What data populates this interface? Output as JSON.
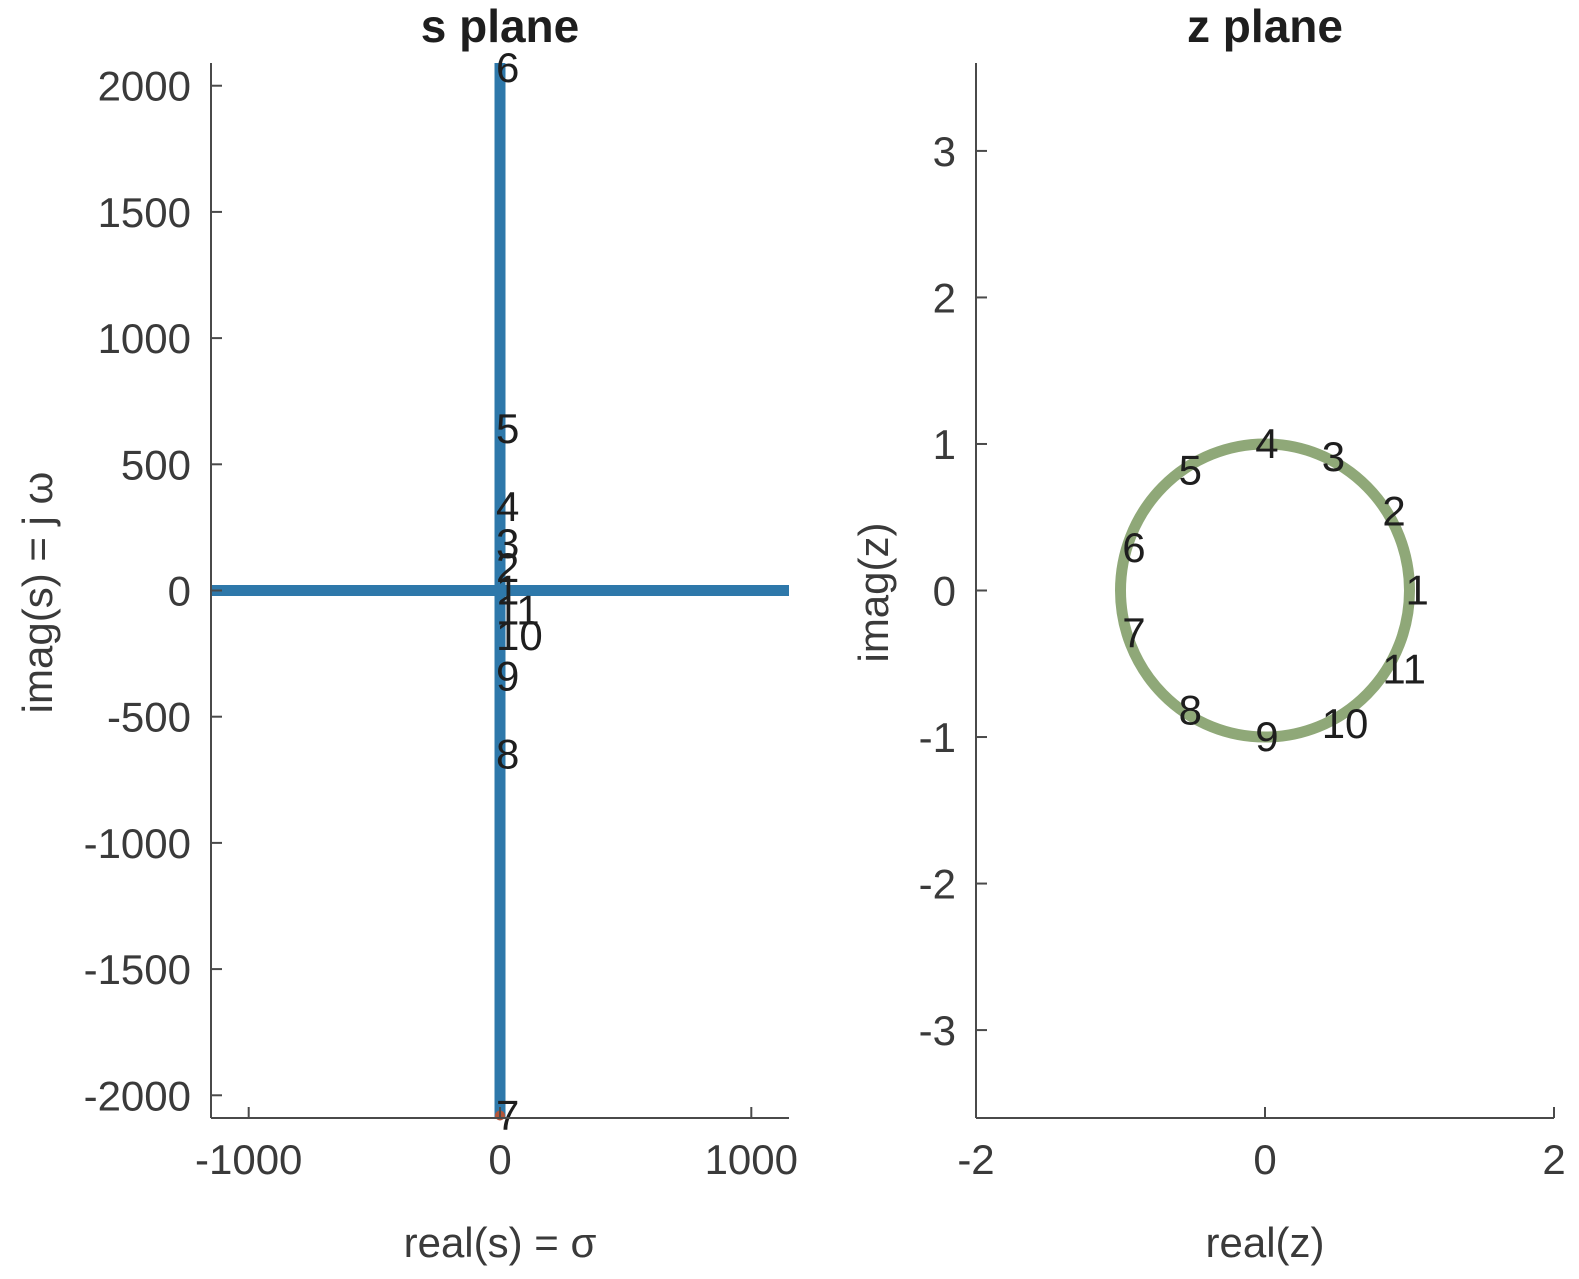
{
  "chart_data": [
    {
      "type": "line",
      "title": "s plane",
      "xlabel": "real(s) = σ",
      "ylabel": "imag(s) = j ω",
      "xlim": [
        -1150,
        1150
      ],
      "ylim": [
        -2090,
        2090
      ],
      "xticks": [
        -1000,
        0,
        1000
      ],
      "xtick_labels": [
        "-1000",
        "0",
        "1000"
      ],
      "yticks": [
        -2000,
        -1500,
        -1000,
        -500,
        0,
        500,
        1000,
        1500,
        2000
      ],
      "ytick_labels": [
        "-2000",
        "-1500",
        "-1000",
        "-500",
        "0",
        "500",
        "1000",
        "1500",
        "2000"
      ],
      "grid": false,
      "line_color": "#2e78aa",
      "marker_color": "#b5563a",
      "series": [
        {
          "x": [
            -1150,
            1150
          ],
          "y": [
            0,
            0
          ]
        },
        {
          "x": [
            0,
            0
          ],
          "y": [
            -2090,
            2090
          ]
        }
      ],
      "points": [
        {
          "label": "1",
          "x": 0,
          "y": 0
        },
        {
          "label": "2",
          "x": 0,
          "y": 90
        },
        {
          "label": "3",
          "x": 0,
          "y": 185
        },
        {
          "label": "4",
          "x": 0,
          "y": 330
        },
        {
          "label": "5",
          "x": 0,
          "y": 640
        },
        {
          "label": "6",
          "x": 0,
          "y": 2070
        },
        {
          "label": "7",
          "x": 0,
          "y": -2080
        },
        {
          "label": "8",
          "x": 0,
          "y": -650
        },
        {
          "label": "9",
          "x": 0,
          "y": -340
        },
        {
          "label": "10",
          "x": 0,
          "y": -180
        },
        {
          "label": "11",
          "x": 0,
          "y": -80
        }
      ]
    },
    {
      "type": "line",
      "title": "z plane",
      "xlabel": "real(z)",
      "ylabel": "imag(z)",
      "xlim": [
        -2,
        2
      ],
      "ylim": [
        -3.6,
        3.6
      ],
      "xticks": [
        -2,
        0,
        2
      ],
      "xtick_labels": [
        "-2",
        "0",
        "2"
      ],
      "yticks": [
        -3,
        -2,
        -1,
        0,
        1,
        2,
        3
      ],
      "ytick_labels": [
        "-3",
        "-2",
        "-1",
        "0",
        "1",
        "2",
        "3"
      ],
      "grid": false,
      "line_color": "#8fa878",
      "series": [
        {
          "shape": "unit-circle",
          "center": [
            0,
            0
          ],
          "radius": 1
        }
      ],
      "points": [
        {
          "label": "1",
          "x": 1.0,
          "y": 0.0
        },
        {
          "label": "2",
          "x": 0.84,
          "y": 0.54
        },
        {
          "label": "3",
          "x": 0.42,
          "y": 0.91
        },
        {
          "label": "4",
          "x": -0.04,
          "y": 1.0
        },
        {
          "label": "5",
          "x": -0.57,
          "y": 0.82
        },
        {
          "label": "6",
          "x": -0.96,
          "y": 0.29
        },
        {
          "label": "7",
          "x": -0.96,
          "y": -0.29
        },
        {
          "label": "8",
          "x": -0.57,
          "y": -0.82
        },
        {
          "label": "9",
          "x": -0.04,
          "y": -1.0
        },
        {
          "label": "10",
          "x": 0.42,
          "y": -0.91
        },
        {
          "label": "11",
          "x": 0.84,
          "y": -0.54
        }
      ]
    }
  ]
}
